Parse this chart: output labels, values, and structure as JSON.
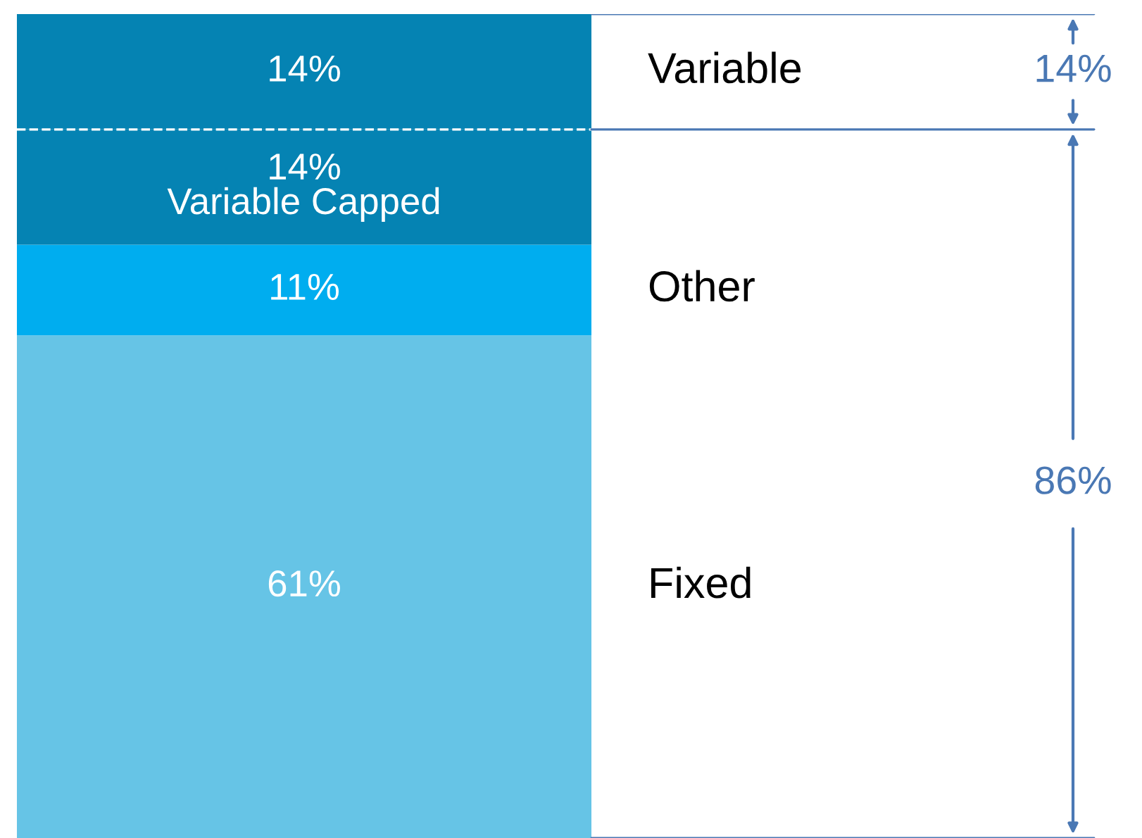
{
  "chart_data": {
    "type": "bar",
    "stacked": true,
    "categories": [
      null
    ],
    "ylim": [
      0,
      100
    ],
    "series": [
      {
        "name": "Fixed",
        "color": "#66c4e6",
        "values": [
          61
        ],
        "value_labels": [
          "61%"
        ]
      },
      {
        "name": "Other",
        "color": "#00adef",
        "values": [
          11
        ],
        "value_labels": [
          "11%"
        ]
      },
      {
        "color": "#0583b3",
        "values": [
          14
        ],
        "value_labels": [
          "14%\nVariable Capped"
        ]
      },
      {
        "name": "Variable",
        "color": "#0583b3",
        "values": [
          14
        ],
        "value_labels": [
          "14%"
        ]
      }
    ],
    "ref_lines": [
      {
        "axis": "y",
        "value": 86,
        "color": "#ffffff",
        "line_style": "dashed"
      }
    ],
    "annotations": [
      "14%",
      "86%"
    ]
  }
}
